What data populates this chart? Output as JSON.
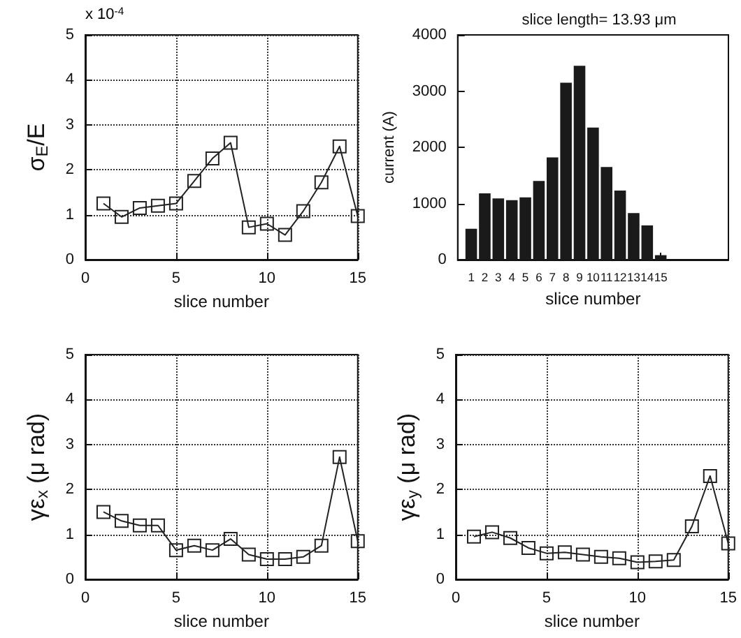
{
  "chart_data": [
    {
      "type": "line",
      "xlabel": "slice number",
      "ylabel": "σ$_{E}$/E",
      "annotations": [
        "x 10$^{-4}$"
      ],
      "x": [
        1,
        2,
        3,
        4,
        5,
        6,
        7,
        8,
        9,
        10,
        11,
        12,
        13,
        14,
        15
      ],
      "series": [
        {
          "color": "#222222",
          "values": [
            1.25,
            0.95,
            1.15,
            1.2,
            1.25,
            1.75,
            2.25,
            2.6,
            0.72,
            0.8,
            0.55,
            1.08,
            1.72,
            2.52,
            0.97
          ]
        }
      ],
      "xlim": [
        0,
        15
      ],
      "xticks": [
        0,
        5,
        10,
        15
      ],
      "ylim": [
        0,
        5
      ],
      "yticks": [
        0,
        1,
        2,
        3,
        4,
        5
      ],
      "grid": true,
      "marker": "square",
      "line_style": "solid"
    },
    {
      "type": "bar",
      "title": "slice length= 13.93 μm",
      "xlabel": "slice number",
      "ylabel": "current (A)",
      "x": [
        1,
        2,
        3,
        4,
        5,
        6,
        7,
        8,
        9,
        10,
        11,
        12,
        13,
        14,
        15
      ],
      "series": [
        {
          "color": "#1a1a1a",
          "values": [
            550,
            1180,
            1090,
            1060,
            1110,
            1400,
            1820,
            3150,
            3450,
            2350,
            1650,
            1230,
            830,
            610,
            80
          ]
        }
      ],
      "xlim": [
        0,
        20
      ],
      "xticks": [
        1,
        2,
        3,
        4,
        5,
        6,
        7,
        8,
        9,
        10,
        11,
        12,
        13,
        14,
        15
      ],
      "ylim": [
        0,
        4000
      ],
      "yticks": [
        0,
        1000,
        2000,
        3000,
        4000
      ],
      "grid": false
    },
    {
      "type": "line",
      "xlabel": "slice number",
      "ylabel": "γε$_{x}$ (μ rad)",
      "x": [
        1,
        2,
        3,
        4,
        5,
        6,
        7,
        8,
        9,
        10,
        11,
        12,
        13,
        14,
        15
      ],
      "series": [
        {
          "color": "#222222",
          "values": [
            1.5,
            1.3,
            1.2,
            1.2,
            0.65,
            0.75,
            0.65,
            0.9,
            0.55,
            0.45,
            0.45,
            0.5,
            0.75,
            2.72,
            0.85
          ]
        }
      ],
      "xlim": [
        0,
        15
      ],
      "xticks": [
        0,
        5,
        10,
        15
      ],
      "ylim": [
        0,
        5
      ],
      "yticks": [
        0,
        1,
        2,
        3,
        4,
        5
      ],
      "grid": true,
      "marker": "square",
      "line_style": "solid"
    },
    {
      "type": "line",
      "xlabel": "slice number",
      "ylabel": "γε$_{y}$ (μ rad)",
      "x": [
        1,
        2,
        3,
        4,
        5,
        6,
        7,
        8,
        9,
        10,
        11,
        12,
        13,
        14,
        15
      ],
      "series": [
        {
          "color": "#222222",
          "values": [
            0.95,
            1.05,
            0.92,
            0.7,
            0.58,
            0.6,
            0.55,
            0.5,
            0.47,
            0.38,
            0.4,
            0.43,
            1.18,
            2.3,
            0.8
          ]
        }
      ],
      "xlim": [
        0,
        15
      ],
      "xticks": [
        0,
        5,
        10,
        15
      ],
      "ylim": [
        0,
        5
      ],
      "yticks": [
        0,
        1,
        2,
        3,
        4,
        5
      ],
      "grid": true,
      "marker": "square",
      "line_style": "solid"
    }
  ]
}
